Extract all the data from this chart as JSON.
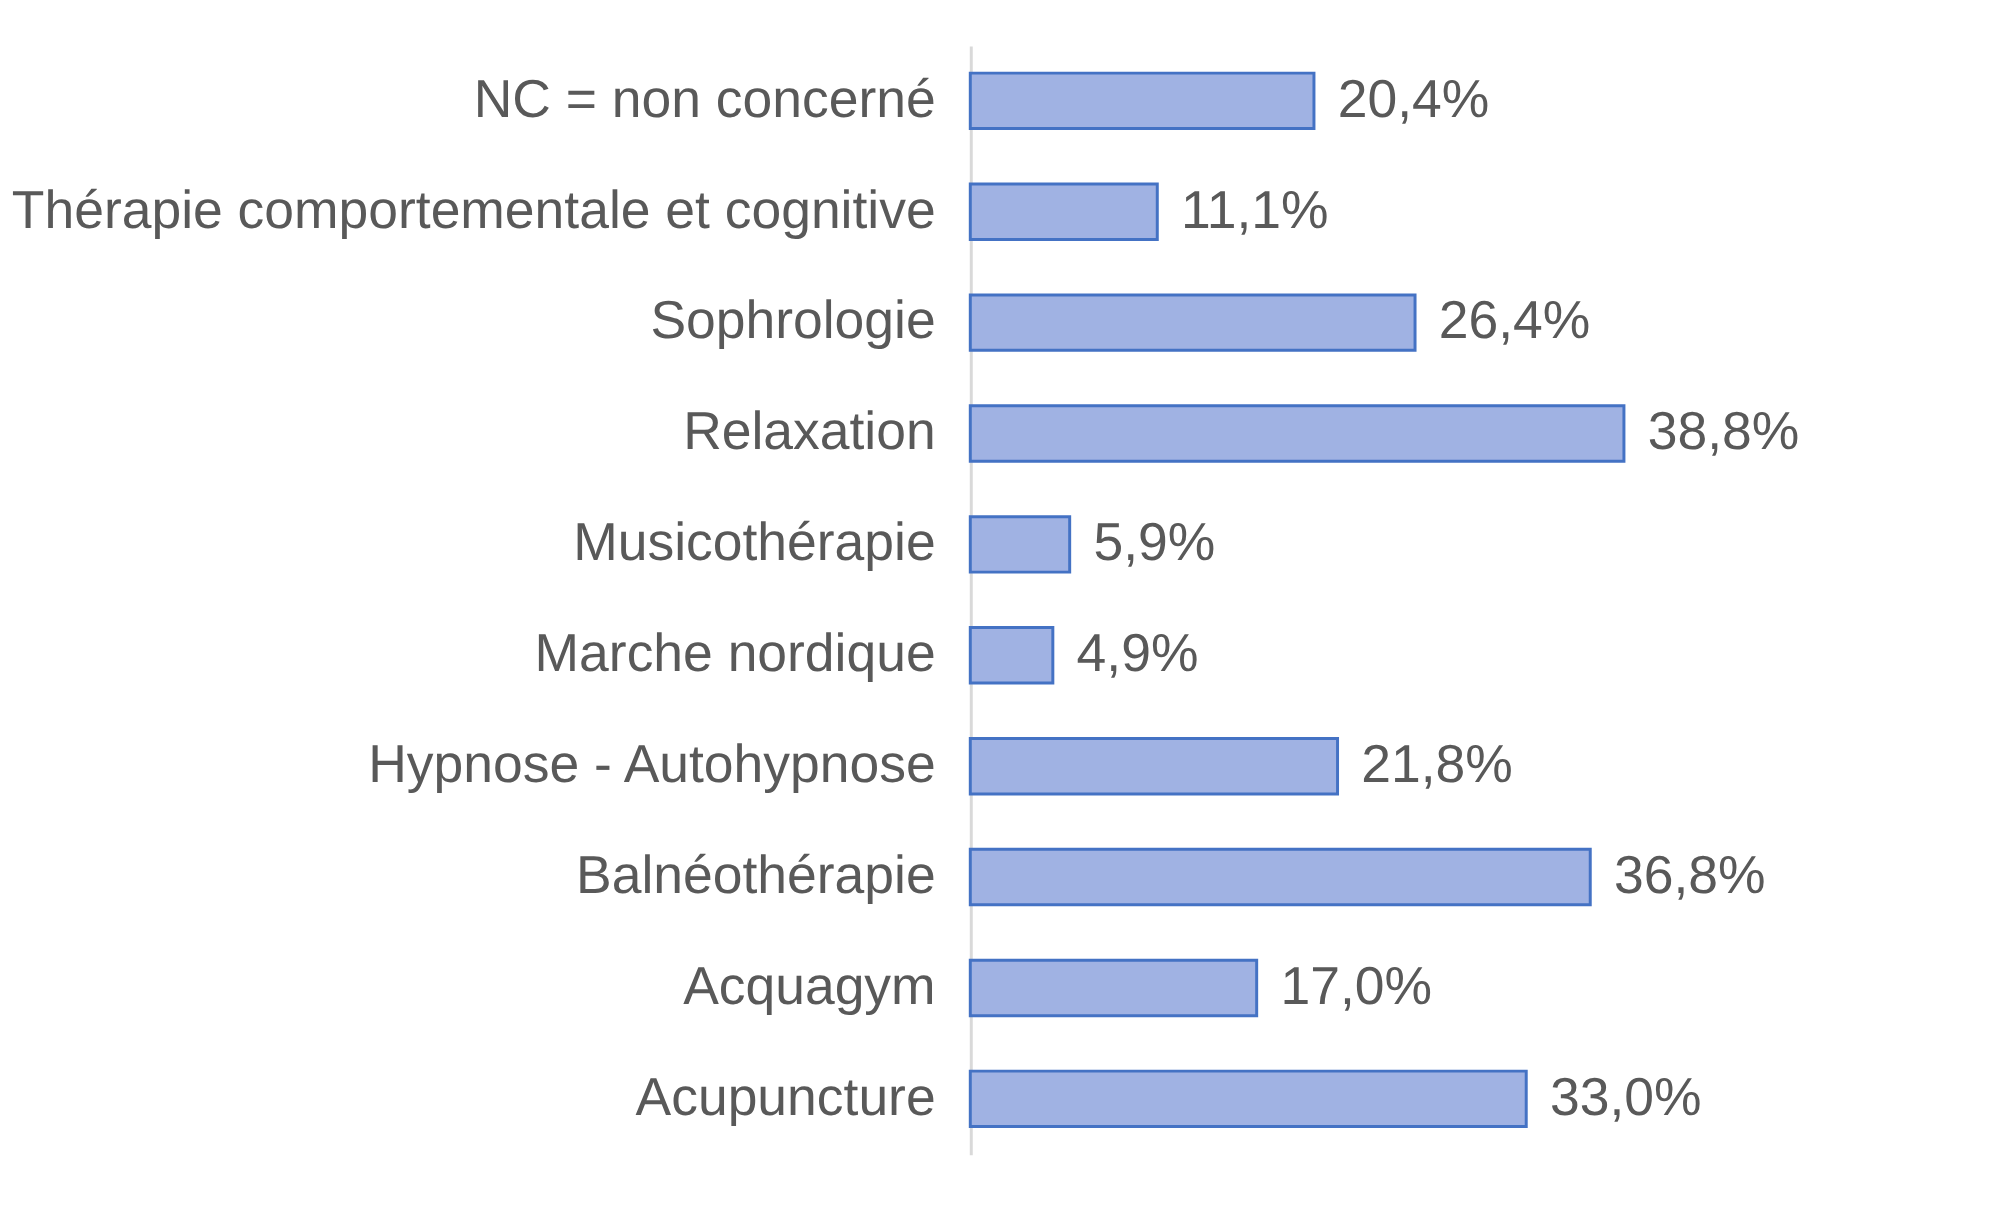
{
  "chart_data": {
    "type": "bar",
    "orientation": "horizontal",
    "categories": [
      "NC = non concerné",
      "Thérapie comportementale et cognitive",
      "Sophrologie",
      "Relaxation",
      "Musicothérapie",
      "Marche nordique",
      "Hypnose - Autohypnose",
      "Balnéothérapie",
      "Acquagym",
      "Acupuncture"
    ],
    "values": [
      20.4,
      11.1,
      26.4,
      38.8,
      5.9,
      4.9,
      21.8,
      36.8,
      17.0,
      33.0
    ],
    "value_labels": [
      "20,4%",
      "11,1%",
      "26,4%",
      "38,8%",
      "5,9%",
      "4,9%",
      "21,8%",
      "36,8%",
      "17,0%",
      "33,0%"
    ],
    "color": "#a0b2e3"
  }
}
